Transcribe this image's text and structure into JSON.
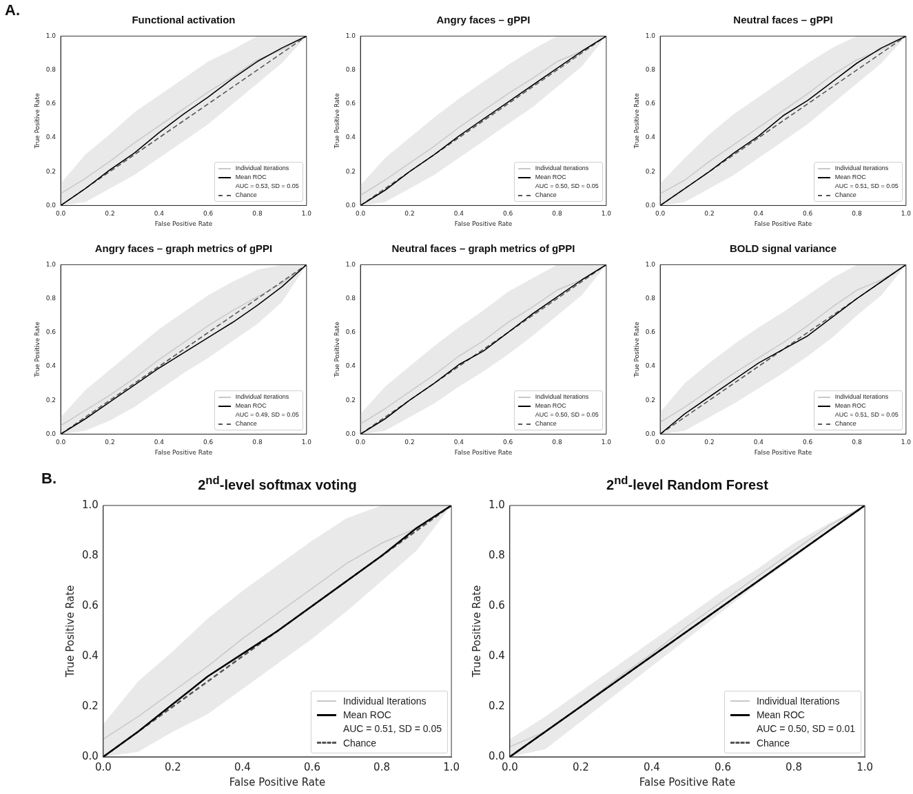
{
  "chart_data": [
    {
      "type": "line",
      "title": "Functional activation",
      "xlabel": "False Positive Rate",
      "ylabel": "True Positive Rate",
      "xlim": [
        0,
        1
      ],
      "ylim": [
        0,
        1
      ],
      "xticks": [
        {
          "value": 0,
          "label": "0.0"
        },
        {
          "value": 0.2,
          "label": "0.2"
        },
        {
          "value": 0.4,
          "label": "0.4"
        },
        {
          "value": 0.6,
          "label": "0.6"
        },
        {
          "value": 0.8,
          "label": "0.8"
        },
        {
          "value": 1,
          "label": "1.0"
        }
      ],
      "yticks": [
        {
          "value": 0,
          "label": "0.0"
        },
        {
          "value": 0.2,
          "label": "0.2"
        },
        {
          "value": 0.4,
          "label": "0.4"
        },
        {
          "value": 0.6,
          "label": "0.6"
        },
        {
          "value": 0.8,
          "label": "0.8"
        },
        {
          "value": 1,
          "label": "1.0"
        }
      ],
      "legend": "bottom right",
      "annotations": [
        "A.",
        "AUC = 0.53, SD = 0.05"
      ],
      "series": [
        {
          "name": "Individual Iterations",
          "color": "#c8c8c8",
          "x": [
            0,
            0.1,
            0.2,
            0.3,
            0.4,
            0.5,
            0.6,
            0.7,
            0.8,
            0.9,
            1
          ],
          "values": [
            0.07,
            0.16,
            0.26,
            0.37,
            0.47,
            0.57,
            0.67,
            0.76,
            0.86,
            0.92,
            1
          ],
          "lower": [
            0,
            0.02,
            0.1,
            0.18,
            0.28,
            0.38,
            0.48,
            0.6,
            0.72,
            0.84,
            1
          ],
          "upper": [
            0.13,
            0.3,
            0.42,
            0.55,
            0.65,
            0.75,
            0.85,
            0.92,
            1,
            1,
            1
          ]
        },
        {
          "name": "Mean ROC",
          "color": "#000000",
          "x": [
            0,
            0.1,
            0.2,
            0.3,
            0.4,
            0.5,
            0.6,
            0.7,
            0.8,
            0.9,
            1
          ],
          "values": [
            0,
            0.1,
            0.21,
            0.31,
            0.43,
            0.54,
            0.64,
            0.75,
            0.85,
            0.93,
            1
          ]
        },
        {
          "name": "Chance",
          "color": "#555555",
          "line_style": "dashed",
          "x": [
            0,
            1
          ],
          "values": [
            0,
            1
          ]
        }
      ]
    },
    {
      "type": "line",
      "title": "Angry faces – gPPI",
      "xlabel": "False Positive Rate",
      "ylabel": "True Positive Rate",
      "xlim": [
        0,
        1
      ],
      "ylim": [
        0,
        1
      ],
      "xticks": [
        {
          "value": 0,
          "label": "0.0"
        },
        {
          "value": 0.2,
          "label": "0.2"
        },
        {
          "value": 0.4,
          "label": "0.4"
        },
        {
          "value": 0.6,
          "label": "0.6"
        },
        {
          "value": 0.8,
          "label": "0.8"
        },
        {
          "value": 1,
          "label": "1.0"
        }
      ],
      "yticks": [
        {
          "value": 0,
          "label": "0.0"
        },
        {
          "value": 0.2,
          "label": "0.2"
        },
        {
          "value": 0.4,
          "label": "0.4"
        },
        {
          "value": 0.6,
          "label": "0.6"
        },
        {
          "value": 0.8,
          "label": "0.8"
        },
        {
          "value": 1,
          "label": "1.0"
        }
      ],
      "legend": "bottom right",
      "annotations": [
        "AUC = 0.50, SD = 0.05"
      ],
      "series": [
        {
          "name": "Individual Iterations",
          "color": "#c8c8c8",
          "x": [
            0,
            0.1,
            0.2,
            0.3,
            0.4,
            0.5,
            0.6,
            0.7,
            0.8,
            0.9,
            1
          ],
          "values": [
            0.06,
            0.15,
            0.25,
            0.35,
            0.46,
            0.56,
            0.66,
            0.75,
            0.85,
            0.91,
            1
          ],
          "lower": [
            0,
            0.02,
            0.1,
            0.18,
            0.28,
            0.38,
            0.48,
            0.58,
            0.7,
            0.82,
            1
          ],
          "upper": [
            0.12,
            0.28,
            0.4,
            0.52,
            0.63,
            0.73,
            0.83,
            0.92,
            1,
            1,
            1
          ]
        },
        {
          "name": "Mean ROC",
          "color": "#000000",
          "x": [
            0,
            0.1,
            0.2,
            0.3,
            0.4,
            0.5,
            0.6,
            0.7,
            0.8,
            0.9,
            1
          ],
          "values": [
            0,
            0.09,
            0.2,
            0.3,
            0.41,
            0.51,
            0.61,
            0.71,
            0.81,
            0.91,
            1
          ]
        },
        {
          "name": "Chance",
          "color": "#555555",
          "line_style": "dashed",
          "x": [
            0,
            1
          ],
          "values": [
            0,
            1
          ]
        }
      ]
    },
    {
      "type": "line",
      "title": "Neutral faces – gPPI",
      "xlabel": "False Positive Rate",
      "ylabel": "True Positive Rate",
      "xlim": [
        0,
        1
      ],
      "ylim": [
        0,
        1
      ],
      "xticks": [
        {
          "value": 0,
          "label": "0.0"
        },
        {
          "value": 0.2,
          "label": "0.2"
        },
        {
          "value": 0.4,
          "label": "0.4"
        },
        {
          "value": 0.6,
          "label": "0.6"
        },
        {
          "value": 0.8,
          "label": "0.8"
        },
        {
          "value": 1,
          "label": "1.0"
        }
      ],
      "yticks": [
        {
          "value": 0,
          "label": "0.0"
        },
        {
          "value": 0.2,
          "label": "0.2"
        },
        {
          "value": 0.4,
          "label": "0.4"
        },
        {
          "value": 0.6,
          "label": "0.6"
        },
        {
          "value": 0.8,
          "label": "0.8"
        },
        {
          "value": 1,
          "label": "1.0"
        }
      ],
      "legend": "bottom right",
      "annotations": [
        "AUC = 0.51, SD = 0.05"
      ],
      "series": [
        {
          "name": "Individual Iterations",
          "color": "#c8c8c8",
          "x": [
            0,
            0.1,
            0.2,
            0.3,
            0.4,
            0.5,
            0.6,
            0.7,
            0.8,
            0.9,
            1
          ],
          "values": [
            0.07,
            0.15,
            0.26,
            0.36,
            0.46,
            0.56,
            0.66,
            0.77,
            0.86,
            0.92,
            1
          ],
          "lower": [
            0,
            0.02,
            0.1,
            0.18,
            0.28,
            0.38,
            0.48,
            0.6,
            0.72,
            0.84,
            1
          ],
          "upper": [
            0.13,
            0.28,
            0.42,
            0.54,
            0.64,
            0.74,
            0.84,
            0.93,
            1,
            1,
            1
          ]
        },
        {
          "name": "Mean ROC",
          "color": "#000000",
          "x": [
            0,
            0.1,
            0.2,
            0.3,
            0.4,
            0.5,
            0.6,
            0.7,
            0.8,
            0.9,
            1
          ],
          "values": [
            0,
            0.1,
            0.2,
            0.31,
            0.41,
            0.53,
            0.62,
            0.73,
            0.84,
            0.93,
            1
          ]
        },
        {
          "name": "Chance",
          "color": "#555555",
          "line_style": "dashed",
          "x": [
            0,
            1
          ],
          "values": [
            0,
            1
          ]
        }
      ]
    },
    {
      "type": "line",
      "title": "Angry faces – graph metrics of gPPI",
      "xlabel": "False Positive Rate",
      "ylabel": "True Positive Rate",
      "xlim": [
        0,
        1
      ],
      "ylim": [
        0,
        1
      ],
      "xticks": [
        {
          "value": 0,
          "label": "0.0"
        },
        {
          "value": 0.2,
          "label": "0.2"
        },
        {
          "value": 0.4,
          "label": "0.4"
        },
        {
          "value": 0.6,
          "label": "0.6"
        },
        {
          "value": 0.8,
          "label": "0.8"
        },
        {
          "value": 1,
          "label": "1.0"
        }
      ],
      "yticks": [
        {
          "value": 0,
          "label": "0.0"
        },
        {
          "value": 0.2,
          "label": "0.2"
        },
        {
          "value": 0.4,
          "label": "0.4"
        },
        {
          "value": 0.6,
          "label": "0.6"
        },
        {
          "value": 0.8,
          "label": "0.8"
        },
        {
          "value": 1,
          "label": "1.0"
        }
      ],
      "legend": "bottom right",
      "annotations": [
        "AUC = 0.49, SD = 0.05"
      ],
      "series": [
        {
          "name": "Individual Iterations",
          "color": "#c8c8c8",
          "x": [
            0,
            0.1,
            0.2,
            0.3,
            0.4,
            0.5,
            0.6,
            0.7,
            0.8,
            0.9,
            1
          ],
          "values": [
            0.05,
            0.14,
            0.23,
            0.33,
            0.44,
            0.54,
            0.64,
            0.73,
            0.81,
            0.89,
            1
          ],
          "lower": [
            0,
            0.02,
            0.08,
            0.16,
            0.26,
            0.36,
            0.45,
            0.55,
            0.65,
            0.78,
            1
          ],
          "upper": [
            0.1,
            0.26,
            0.38,
            0.5,
            0.62,
            0.72,
            0.82,
            0.9,
            0.97,
            1,
            1
          ]
        },
        {
          "name": "Mean ROC",
          "color": "#000000",
          "x": [
            0,
            0.1,
            0.2,
            0.3,
            0.4,
            0.5,
            0.6,
            0.7,
            0.8,
            0.9,
            1
          ],
          "values": [
            0,
            0.09,
            0.19,
            0.29,
            0.39,
            0.48,
            0.57,
            0.66,
            0.76,
            0.87,
            1
          ]
        },
        {
          "name": "Chance",
          "color": "#555555",
          "line_style": "dashed",
          "x": [
            0,
            1
          ],
          "values": [
            0,
            1
          ]
        }
      ]
    },
    {
      "type": "line",
      "title": "Neutral faces – graph metrics of gPPI",
      "xlabel": "False Positive Rate",
      "ylabel": "True Positive Rate",
      "xlim": [
        0,
        1
      ],
      "ylim": [
        0,
        1
      ],
      "xticks": [
        {
          "value": 0,
          "label": "0.0"
        },
        {
          "value": 0.2,
          "label": "0.2"
        },
        {
          "value": 0.4,
          "label": "0.4"
        },
        {
          "value": 0.6,
          "label": "0.6"
        },
        {
          "value": 0.8,
          "label": "0.8"
        },
        {
          "value": 1,
          "label": "1.0"
        }
      ],
      "yticks": [
        {
          "value": 0,
          "label": "0.0"
        },
        {
          "value": 0.2,
          "label": "0.2"
        },
        {
          "value": 0.4,
          "label": "0.4"
        },
        {
          "value": 0.6,
          "label": "0.6"
        },
        {
          "value": 0.8,
          "label": "0.8"
        },
        {
          "value": 1,
          "label": "1.0"
        }
      ],
      "legend": "bottom right",
      "annotations": [
        "AUC = 0.50, SD = 0.05"
      ],
      "series": [
        {
          "name": "Individual Iterations",
          "color": "#c8c8c8",
          "x": [
            0,
            0.1,
            0.2,
            0.3,
            0.4,
            0.5,
            0.6,
            0.7,
            0.8,
            0.9,
            1
          ],
          "values": [
            0.06,
            0.15,
            0.25,
            0.35,
            0.46,
            0.55,
            0.66,
            0.75,
            0.85,
            0.91,
            1
          ],
          "lower": [
            0,
            0.02,
            0.1,
            0.18,
            0.28,
            0.37,
            0.47,
            0.58,
            0.7,
            0.82,
            1
          ],
          "upper": [
            0.12,
            0.28,
            0.4,
            0.52,
            0.63,
            0.73,
            0.84,
            0.92,
            1,
            1,
            1
          ]
        },
        {
          "name": "Mean ROC",
          "color": "#000000",
          "x": [
            0,
            0.1,
            0.2,
            0.3,
            0.4,
            0.5,
            0.6,
            0.7,
            0.8,
            0.9,
            1
          ],
          "values": [
            0,
            0.09,
            0.2,
            0.3,
            0.41,
            0.49,
            0.6,
            0.71,
            0.81,
            0.91,
            1
          ]
        },
        {
          "name": "Chance",
          "color": "#555555",
          "line_style": "dashed",
          "x": [
            0,
            1
          ],
          "values": [
            0,
            1
          ]
        }
      ]
    },
    {
      "type": "line",
      "title": "BOLD signal variance",
      "xlabel": "False Positive Rate",
      "ylabel": "True Positive Rate",
      "xlim": [
        0,
        1
      ],
      "ylim": [
        0,
        1
      ],
      "xticks": [
        {
          "value": 0,
          "label": "0.0"
        },
        {
          "value": 0.2,
          "label": "0.2"
        },
        {
          "value": 0.4,
          "label": "0.4"
        },
        {
          "value": 0.6,
          "label": "0.6"
        },
        {
          "value": 0.8,
          "label": "0.8"
        },
        {
          "value": 1,
          "label": "1.0"
        }
      ],
      "yticks": [
        {
          "value": 0,
          "label": "0.0"
        },
        {
          "value": 0.2,
          "label": "0.2"
        },
        {
          "value": 0.4,
          "label": "0.4"
        },
        {
          "value": 0.6,
          "label": "0.6"
        },
        {
          "value": 0.8,
          "label": "0.8"
        },
        {
          "value": 1,
          "label": "1.0"
        }
      ],
      "legend": "bottom right",
      "annotations": [
        "AUC = 0.51, SD = 0.05"
      ],
      "series": [
        {
          "name": "Individual Iterations",
          "color": "#c8c8c8",
          "x": [
            0,
            0.1,
            0.2,
            0.3,
            0.4,
            0.5,
            0.6,
            0.7,
            0.8,
            0.9,
            1
          ],
          "values": [
            0.07,
            0.16,
            0.26,
            0.36,
            0.45,
            0.54,
            0.64,
            0.75,
            0.85,
            0.91,
            1
          ],
          "lower": [
            0,
            0.02,
            0.1,
            0.18,
            0.27,
            0.36,
            0.46,
            0.57,
            0.7,
            0.82,
            1
          ],
          "upper": [
            0.13,
            0.3,
            0.42,
            0.53,
            0.63,
            0.72,
            0.82,
            0.92,
            1,
            1,
            1
          ]
        },
        {
          "name": "Mean ROC",
          "color": "#000000",
          "x": [
            0,
            0.1,
            0.2,
            0.3,
            0.4,
            0.5,
            0.6,
            0.7,
            0.8,
            0.9,
            1
          ],
          "values": [
            0,
            0.12,
            0.22,
            0.32,
            0.42,
            0.5,
            0.58,
            0.69,
            0.8,
            0.9,
            1
          ]
        },
        {
          "name": "Chance",
          "color": "#555555",
          "line_style": "dashed",
          "x": [
            0,
            1
          ],
          "values": [
            0,
            1
          ]
        }
      ]
    },
    {
      "type": "line",
      "title": "2$^{nd}$-level softmax voting",
      "xlabel": "False Positive Rate",
      "ylabel": "True Positive Rate",
      "xlim": [
        0,
        1
      ],
      "ylim": [
        0,
        1
      ],
      "xticks": [
        {
          "value": 0,
          "label": "0.0"
        },
        {
          "value": 0.2,
          "label": "0.2"
        },
        {
          "value": 0.4,
          "label": "0.4"
        },
        {
          "value": 0.6,
          "label": "0.6"
        },
        {
          "value": 0.8,
          "label": "0.8"
        },
        {
          "value": 1,
          "label": "1.0"
        }
      ],
      "yticks": [
        {
          "value": 0,
          "label": "0.0"
        },
        {
          "value": 0.2,
          "label": "0.2"
        },
        {
          "value": 0.4,
          "label": "0.4"
        },
        {
          "value": 0.6,
          "label": "0.6"
        },
        {
          "value": 0.8,
          "label": "0.8"
        },
        {
          "value": 1,
          "label": "1.0"
        }
      ],
      "legend": "bottom right",
      "annotations": [
        "B.",
        "AUC = 0.51, SD = 0.05"
      ],
      "series": [
        {
          "name": "Individual Iterations",
          "color": "#c8c8c8",
          "x": [
            0,
            0.1,
            0.2,
            0.3,
            0.4,
            0.5,
            0.6,
            0.7,
            0.8,
            0.9,
            1
          ],
          "values": [
            0.07,
            0.16,
            0.26,
            0.36,
            0.47,
            0.57,
            0.67,
            0.77,
            0.85,
            0.91,
            1
          ],
          "lower": [
            0,
            0.02,
            0.1,
            0.17,
            0.27,
            0.37,
            0.47,
            0.58,
            0.7,
            0.82,
            1
          ],
          "upper": [
            0.13,
            0.3,
            0.42,
            0.55,
            0.66,
            0.76,
            0.86,
            0.95,
            1,
            1,
            1
          ]
        },
        {
          "name": "Mean ROC",
          "color": "#000000",
          "x": [
            0,
            0.1,
            0.2,
            0.3,
            0.4,
            0.5,
            0.6,
            0.7,
            0.8,
            0.9,
            1
          ],
          "values": [
            0,
            0.1,
            0.21,
            0.32,
            0.41,
            0.5,
            0.6,
            0.7,
            0.8,
            0.91,
            1
          ]
        },
        {
          "name": "Chance",
          "color": "#555555",
          "line_style": "dashed",
          "x": [
            0,
            1
          ],
          "values": [
            0,
            1
          ]
        }
      ]
    },
    {
      "type": "line",
      "title": "2$^{nd}$-level Random Forest",
      "xlabel": "False Positive Rate",
      "ylabel": "True Positive Rate",
      "xlim": [
        0,
        1
      ],
      "ylim": [
        0,
        1
      ],
      "xticks": [
        {
          "value": 0,
          "label": "0.0"
        },
        {
          "value": 0.2,
          "label": "0.2"
        },
        {
          "value": 0.4,
          "label": "0.4"
        },
        {
          "value": 0.6,
          "label": "0.6"
        },
        {
          "value": 0.8,
          "label": "0.8"
        },
        {
          "value": 1,
          "label": "1.0"
        }
      ],
      "yticks": [
        {
          "value": 0,
          "label": "0.0"
        },
        {
          "value": 0.2,
          "label": "0.2"
        },
        {
          "value": 0.4,
          "label": "0.4"
        },
        {
          "value": 0.6,
          "label": "0.6"
        },
        {
          "value": 0.8,
          "label": "0.8"
        },
        {
          "value": 1,
          "label": "1.0"
        }
      ],
      "legend": "bottom right",
      "annotations": [
        "AUC = 0.50, SD = 0.01"
      ],
      "series": [
        {
          "name": "Individual Iterations",
          "color": "#c8c8c8",
          "x": [
            0,
            0.1,
            0.2,
            0.3,
            0.4,
            0.5,
            0.6,
            0.7,
            0.8,
            0.9,
            1
          ],
          "values": [
            0.04,
            0.1,
            0.2,
            0.31,
            0.41,
            0.52,
            0.62,
            0.72,
            0.82,
            0.92,
            1
          ],
          "lower": [
            0,
            0.03,
            0.14,
            0.25,
            0.36,
            0.47,
            0.58,
            0.69,
            0.79,
            0.9,
            1
          ],
          "upper": [
            0.07,
            0.16,
            0.26,
            0.36,
            0.46,
            0.56,
            0.66,
            0.75,
            0.85,
            0.93,
            1
          ]
        },
        {
          "name": "Mean ROC",
          "color": "#000000",
          "x": [
            0,
            0.1,
            0.2,
            0.3,
            0.4,
            0.5,
            0.6,
            0.7,
            0.8,
            0.9,
            1
          ],
          "values": [
            0,
            0.1,
            0.2,
            0.3,
            0.4,
            0.5,
            0.6,
            0.7,
            0.8,
            0.9,
            1
          ]
        },
        {
          "name": "Chance",
          "color": "#555555",
          "line_style": "dashed",
          "x": [
            0,
            1
          ],
          "values": [
            0,
            1
          ]
        }
      ]
    }
  ]
}
